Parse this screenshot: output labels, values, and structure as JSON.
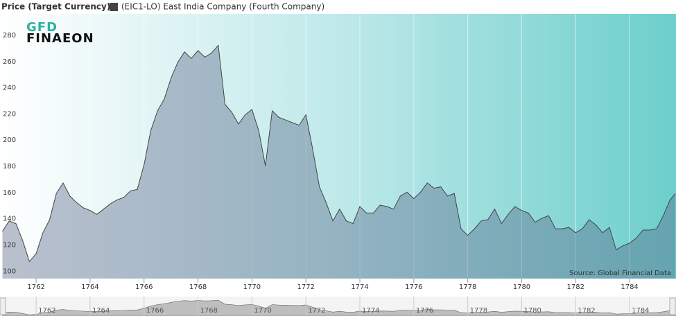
{
  "chart_data": {
    "type": "area",
    "y_label": "Price (Target Currency)",
    "logo": [
      "GFD",
      "FINAEON"
    ],
    "source": "Source: Global Financial Data",
    "x": [
      1760.75,
      1761,
      1761.25,
      1761.5,
      1761.75,
      1762,
      1762.25,
      1762.5,
      1762.75,
      1763,
      1763.25,
      1763.5,
      1763.75,
      1764,
      1764.25,
      1764.5,
      1764.75,
      1765,
      1765.25,
      1765.5,
      1765.75,
      1766,
      1766.25,
      1766.5,
      1766.75,
      1767,
      1767.25,
      1767.5,
      1767.75,
      1768,
      1768.25,
      1768.5,
      1768.75,
      1769,
      1769.25,
      1769.5,
      1769.75,
      1770,
      1770.25,
      1770.5,
      1770.75,
      1771,
      1771.25,
      1771.5,
      1771.75,
      1772,
      1772.25,
      1772.5,
      1772.75,
      1773,
      1773.25,
      1773.5,
      1773.75,
      1774,
      1774.25,
      1774.5,
      1774.75,
      1775,
      1775.25,
      1775.5,
      1775.75,
      1776,
      1776.25,
      1776.5,
      1776.75,
      1777,
      1777.25,
      1777.5,
      1777.75,
      1778,
      1778.25,
      1778.5,
      1778.75,
      1779,
      1779.25,
      1779.5,
      1779.75,
      1780,
      1780.25,
      1780.5,
      1780.75,
      1781,
      1781.25,
      1781.5,
      1781.75,
      1782,
      1782.25,
      1782.5,
      1782.75,
      1783,
      1783.25,
      1783.5,
      1783.75,
      1784,
      1784.25,
      1784.5,
      1784.75,
      1785,
      1785.25,
      1785.5,
      1785.7
    ],
    "series": [
      {
        "name": "(EIC1-LO) East India Company (Fourth Company)",
        "color": "#444444",
        "values": [
          133,
          141,
          139,
          126,
          110,
          116,
          132,
          142,
          162,
          170,
          160,
          155,
          151,
          149,
          146,
          150,
          154,
          157,
          159,
          164,
          165,
          184,
          210,
          225,
          234,
          250,
          262,
          270,
          265,
          271,
          266,
          269,
          275,
          230,
          224,
          215,
          222,
          226,
          210,
          183,
          225,
          220,
          218,
          216,
          214,
          222,
          196,
          167,
          155,
          141,
          150,
          141,
          139,
          152,
          147,
          147,
          153,
          152,
          150,
          160,
          163,
          158,
          163,
          170,
          166,
          167,
          160,
          162,
          135,
          130,
          135,
          141,
          142,
          150,
          139,
          146,
          152,
          149,
          147,
          140,
          143,
          145,
          135,
          135,
          136,
          132,
          135,
          142,
          138,
          132,
          136,
          119,
          122,
          124,
          128,
          134,
          134,
          135,
          145,
          157,
          162
        ]
      }
    ],
    "xlim": [
      1760.66,
      1785.72
    ],
    "xticks": [
      1762,
      1764,
      1766,
      1768,
      1770,
      1772,
      1774,
      1776,
      1778,
      1780,
      1782,
      1784
    ],
    "ylim": [
      97,
      299
    ],
    "yticks": [
      100,
      120,
      140,
      160,
      180,
      200,
      220,
      240,
      260,
      280
    ],
    "grid": "x"
  }
}
